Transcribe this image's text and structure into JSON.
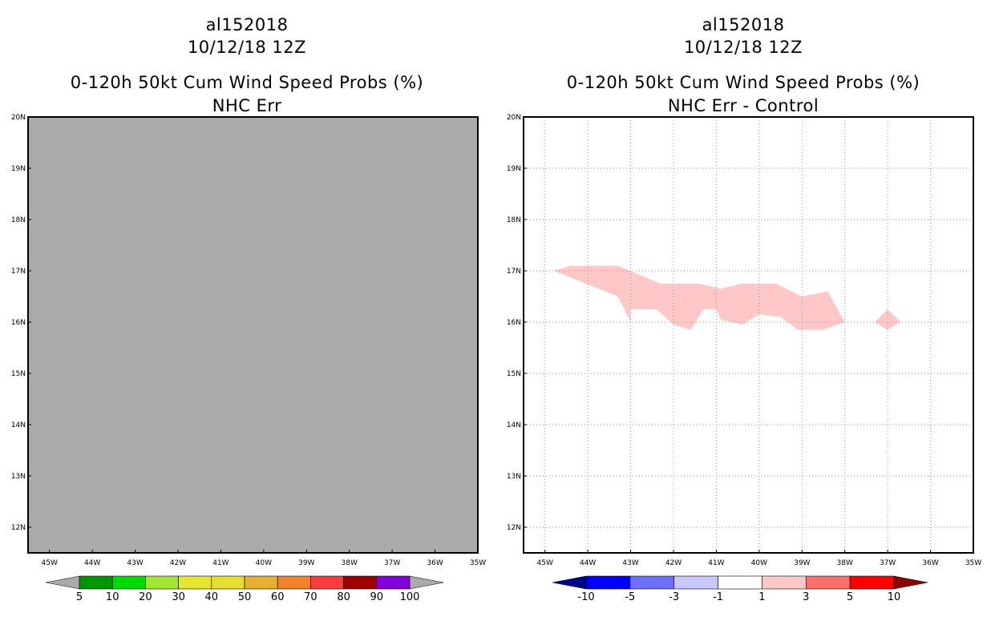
{
  "left_panel": {
    "storm_id": "al152018",
    "datetime": "10/12/18 12Z",
    "title": "0-120h 50kt Cum Wind Speed Probs (%)",
    "subtitle": "NHC Err",
    "fill_color": "#aaaaaa",
    "colorbar": {
      "colors": [
        "#009600",
        "#00dc00",
        "#a0e632",
        "#e6e632",
        "#e6dc32",
        "#e6af2d",
        "#f08228",
        "#fa3c3c",
        "#a00000",
        "#8200dc"
      ],
      "labels": [
        "5",
        "10",
        "20",
        "30",
        "40",
        "50",
        "60",
        "70",
        "80",
        "90",
        "100"
      ],
      "under_color": "#aaaaaa",
      "over_color": "#aaaaaa"
    }
  },
  "right_panel": {
    "storm_id": "al152018",
    "datetime": "10/12/18 12Z",
    "title": "0-120h 50kt Cum Wind Speed Probs (%)",
    "subtitle": "NHC Err - Control",
    "fill_color": "#ffc8c8",
    "colorbar": {
      "colors": [
        "#0000ff",
        "#6e6eff",
        "#c8c8ff",
        "#ffffff",
        "#ffc8c8",
        "#ff6e6e",
        "#ff0000"
      ],
      "labels": [
        "-10",
        "-5",
        "-3",
        "-1",
        "1",
        "3",
        "5",
        "10"
      ],
      "under_color": "#00008c",
      "over_color": "#8c0000"
    }
  },
  "map": {
    "lon_ticks": [
      "45W",
      "44W",
      "43W",
      "42W",
      "41W",
      "40W",
      "39W",
      "38W",
      "37W",
      "36W",
      "35W"
    ],
    "lat_ticks": [
      "20N",
      "19N",
      "18N",
      "17N",
      "16N",
      "15N",
      "14N",
      "13N",
      "12N"
    ],
    "lon_values": [
      -45,
      -44,
      -43,
      -42,
      -41,
      -40,
      -39,
      -38,
      -37,
      -36,
      -35
    ],
    "lat_values": [
      20,
      19,
      18,
      17,
      16,
      15,
      14,
      13,
      12
    ],
    "lon_range": [
      -45.5,
      -35
    ],
    "lat_range": [
      11.5,
      20
    ],
    "positive_region_1": [
      [
        -44.8,
        17.0
      ],
      [
        -44.4,
        17.1
      ],
      [
        -43.3,
        17.1
      ],
      [
        -42.3,
        16.75
      ],
      [
        -41.4,
        16.75
      ],
      [
        -40.9,
        16.65
      ],
      [
        -40.4,
        16.75
      ],
      [
        -39.6,
        16.75
      ],
      [
        -39.0,
        16.5
      ],
      [
        -38.4,
        16.6
      ],
      [
        -38.0,
        16.0
      ],
      [
        -38.5,
        15.85
      ],
      [
        -39.1,
        15.85
      ],
      [
        -39.5,
        16.1
      ],
      [
        -40.0,
        16.15
      ],
      [
        -40.4,
        15.95
      ],
      [
        -40.9,
        16.05
      ],
      [
        -41.0,
        16.25
      ],
      [
        -41.3,
        16.25
      ],
      [
        -41.6,
        15.85
      ],
      [
        -42.0,
        15.95
      ],
      [
        -42.4,
        16.25
      ],
      [
        -43.0,
        16.25
      ],
      [
        -43.0,
        16.0
      ],
      [
        -43.3,
        16.5
      ]
    ],
    "positive_region_2": [
      [
        -37.3,
        16.0
      ],
      [
        -37.0,
        16.25
      ],
      [
        -36.7,
        16.0
      ],
      [
        -37.0,
        15.85
      ]
    ]
  }
}
